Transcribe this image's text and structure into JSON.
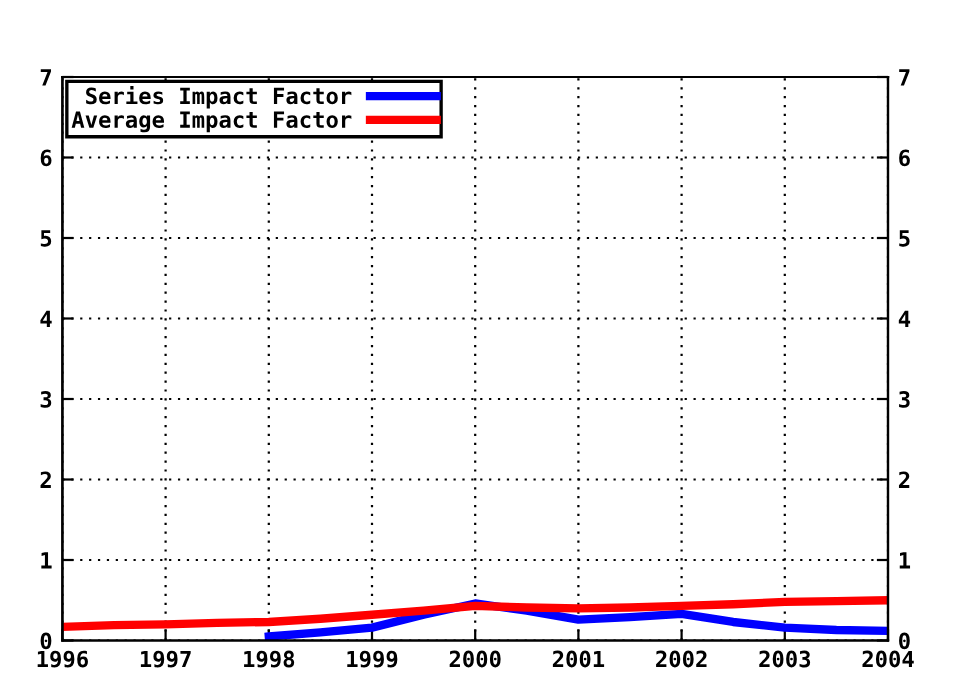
{
  "chart_data": {
    "type": "line",
    "x": [
      1996,
      1996.5,
      1997,
      1997.5,
      1998,
      1998.5,
      1999,
      1999.5,
      2000,
      2000.5,
      2001,
      2001.5,
      2002,
      2002.5,
      2003,
      2003.5,
      2004
    ],
    "series": [
      {
        "name": "Series Impact Factor",
        "color": "#0000ff",
        "values": [
          null,
          null,
          null,
          null,
          0.05,
          0.1,
          0.16,
          0.32,
          0.46,
          0.37,
          0.26,
          0.29,
          0.33,
          0.23,
          0.16,
          0.13,
          0.12
        ]
      },
      {
        "name": "Average Impact Factor",
        "color": "#ff0000",
        "values": [
          0.17,
          0.19,
          0.2,
          0.22,
          0.23,
          0.27,
          0.32,
          0.37,
          0.43,
          0.41,
          0.4,
          0.41,
          0.43,
          0.45,
          0.48,
          0.49,
          0.5
        ]
      }
    ],
    "xlim": [
      1996,
      2004
    ],
    "xticks": [
      1996,
      1997,
      1998,
      1999,
      2000,
      2001,
      2002,
      2003,
      2004
    ],
    "ylim": [
      0,
      7
    ],
    "yticks": [
      0,
      1,
      2,
      3,
      4,
      5,
      6,
      7
    ],
    "y2lim": [
      0,
      7
    ],
    "y2ticks": [
      0,
      1,
      2,
      3,
      4,
      5,
      6,
      7
    ],
    "grid": true,
    "legend": "top left",
    "marker": "none",
    "line_style": "solid"
  }
}
